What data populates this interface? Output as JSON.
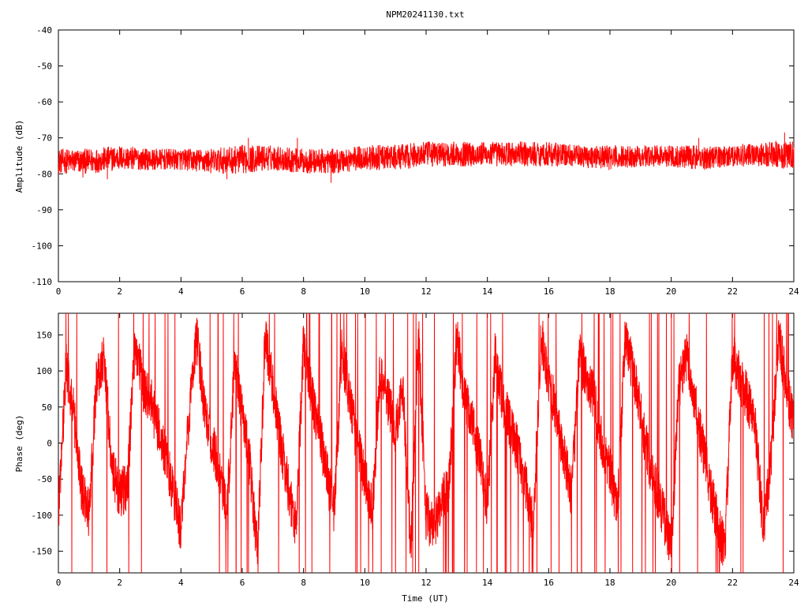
{
  "chart_data": [
    {
      "type": "line",
      "title": "NPM20241130.txt",
      "xlabel": "",
      "ylabel": "Amplitude (dB)",
      "xlim": [
        0,
        24
      ],
      "ylim": [
        -110,
        -40
      ],
      "xticks": [
        "0",
        "2",
        "4",
        "6",
        "8",
        "10",
        "12",
        "14",
        "16",
        "18",
        "20",
        "22",
        "24"
      ],
      "yticks": [
        "-40",
        "-50",
        "-60",
        "-70",
        "-80",
        "-90",
        "-100",
        "-110"
      ],
      "color": "#ff0000",
      "series": [
        {
          "band_x": [
            0,
            1,
            2,
            3,
            4,
            5,
            6,
            7,
            8,
            9,
            10,
            11,
            12,
            13,
            14,
            15,
            16,
            17,
            18,
            19,
            20,
            21,
            22,
            23,
            24
          ],
          "band_min": [
            -80,
            -80,
            -79,
            -79,
            -79,
            -80,
            -80,
            -79,
            -80,
            -80,
            -79,
            -79,
            -78,
            -78,
            -78,
            -78,
            -78,
            -78,
            -79,
            -78,
            -78,
            -79,
            -78,
            -78,
            -79
          ],
          "band_max": [
            -73,
            -73,
            -72,
            -73,
            -73,
            -73,
            -72,
            -72,
            -73,
            -73,
            -72,
            -72,
            -71,
            -71,
            -71,
            -71,
            -71,
            -72,
            -72,
            -72,
            -72,
            -72,
            -72,
            -71,
            -71
          ],
          "spikes": [
            {
              "x": 0.8,
              "y": -81
            },
            {
              "x": 1.6,
              "y": -81.5
            },
            {
              "x": 5.5,
              "y": -81.5
            },
            {
              "x": 6.2,
              "y": -70
            },
            {
              "x": 7.8,
              "y": -70
            },
            {
              "x": 8.9,
              "y": -82.5
            },
            {
              "x": 20.9,
              "y": -70
            },
            {
              "x": 23.7,
              "y": -68.5
            }
          ]
        }
      ]
    },
    {
      "type": "line",
      "title": "",
      "xlabel": "Time (UT)",
      "ylabel": "Phase (deg)",
      "xlim": [
        0,
        24
      ],
      "ylim": [
        -180,
        180
      ],
      "xticks": [
        "0",
        "2",
        "4",
        "6",
        "8",
        "10",
        "12",
        "14",
        "16",
        "18",
        "20",
        "22",
        "24"
      ],
      "yticks": [
        "150",
        "100",
        "50",
        "0",
        "-50",
        "-100",
        "-150"
      ],
      "yticks_values": [
        150,
        100,
        50,
        0,
        -50,
        -100,
        -150
      ],
      "color": "#ff0000",
      "series": [
        {
          "x": [
            0,
            0.25,
            0.5,
            0.75,
            1,
            1.25,
            1.5,
            1.75,
            2,
            2.25,
            2.5,
            2.75,
            3,
            3.25,
            3.5,
            3.75,
            4,
            4.25,
            4.5,
            4.75,
            5,
            5.25,
            5.5,
            5.75,
            6,
            6.25,
            6.5,
            6.75,
            7,
            7.25,
            7.5,
            7.75,
            8,
            8.25,
            8.5,
            8.75,
            9,
            9.25,
            9.5,
            9.75,
            10,
            10.25,
            10.5,
            10.75,
            11,
            11.25,
            11.5,
            11.75,
            12,
            12.25,
            12.5,
            12.75,
            13,
            13.25,
            13.5,
            13.75,
            14,
            14.25,
            14.5,
            14.75,
            15,
            15.25,
            15.5,
            15.75,
            16,
            16.25,
            16.5,
            16.75,
            17,
            17.25,
            17.5,
            17.75,
            18,
            18.25,
            18.5,
            18.75,
            19,
            19.25,
            19.5,
            19.75,
            20,
            20.25,
            20.5,
            20.75,
            21,
            21.25,
            21.5,
            21.75,
            22,
            22.25,
            22.5,
            22.75,
            23,
            23.25,
            23.5,
            23.75,
            24
          ],
          "y": [
            -100,
            110,
            40,
            -60,
            -100,
            90,
            120,
            -40,
            -70,
            -60,
            140,
            80,
            60,
            20,
            -20,
            -70,
            -120,
            30,
            150,
            60,
            0,
            -40,
            -100,
            110,
            40,
            -30,
            -150,
            150,
            80,
            0,
            -60,
            -120,
            140,
            70,
            20,
            -40,
            -100,
            130,
            60,
            0,
            -50,
            -90,
            100,
            60,
            20,
            80,
            -150,
            150,
            -100,
            -120,
            -80,
            -60,
            150,
            60,
            30,
            -20,
            -90,
            120,
            60,
            20,
            -10,
            -60,
            -120,
            150,
            90,
            40,
            -20,
            -70,
            120,
            90,
            60,
            0,
            -40,
            -90,
            150,
            100,
            40,
            -20,
            -60,
            -100,
            -150,
            80,
            120,
            60,
            0,
            -60,
            -110,
            -150,
            120,
            90,
            60,
            20,
            -120,
            -30,
            150,
            80,
            20
          ]
        }
      ]
    }
  ]
}
